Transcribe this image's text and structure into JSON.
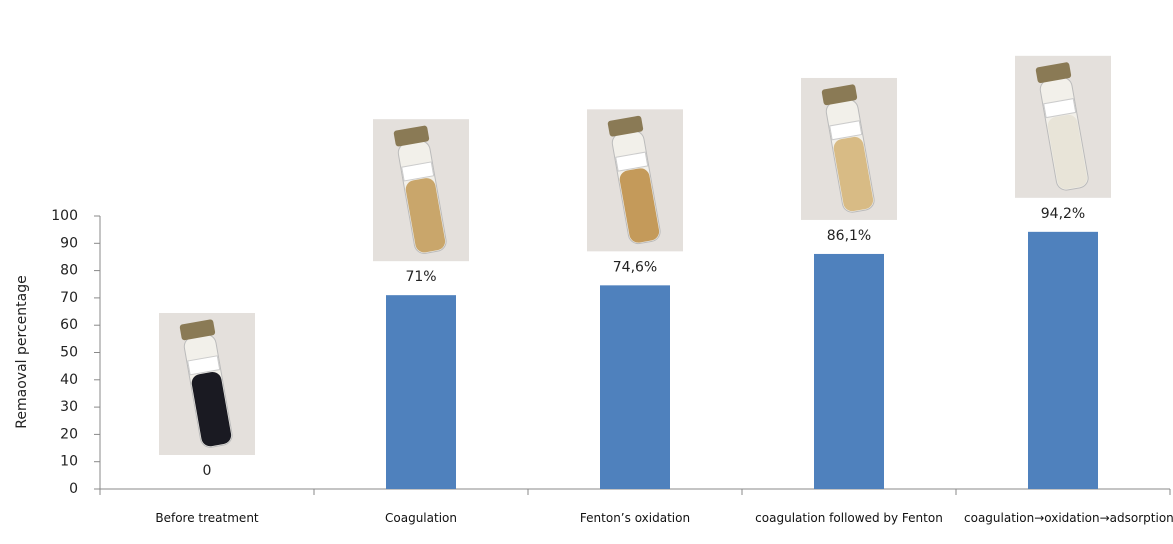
{
  "chart_data": {
    "type": "bar",
    "y_label": "Remaoval percentage",
    "categories": [
      "Before treatment",
      "Coagulation",
      "Fenton’s oxidation",
      "coagulation followed by Fenton",
      "coagulation→oxidation→adsorption"
    ],
    "values": [
      0,
      71,
      74.6,
      86.1,
      94.2
    ],
    "value_labels": [
      "0",
      "71%",
      "74,6%",
      "86,1%",
      "94,2%"
    ],
    "color": "#4f81bd",
    "ylim": [
      0,
      100
    ],
    "yticks": [
      0,
      10,
      20,
      30,
      40,
      50,
      60,
      70,
      80,
      90,
      100
    ],
    "grid": false
  }
}
